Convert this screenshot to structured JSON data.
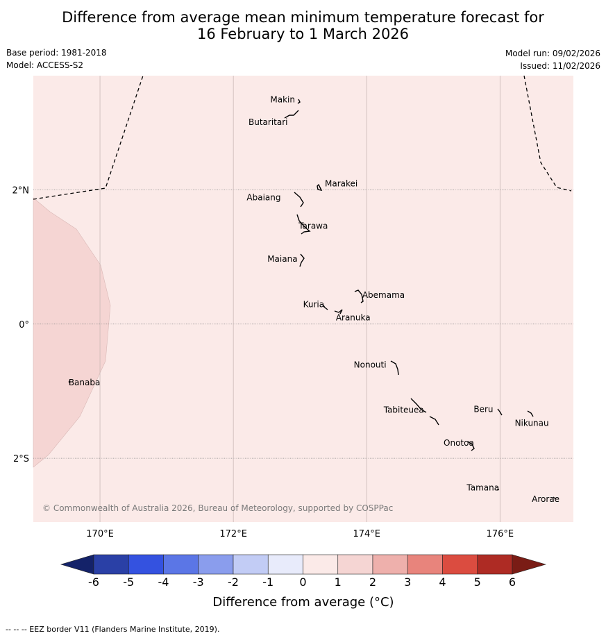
{
  "title": {
    "line1": "Difference from average mean minimum temperature forecast for",
    "line2": "16 February to 1 March 2026"
  },
  "meta": {
    "base_period": "Base period: 1981-2018",
    "model": "Model: ACCESS-S2",
    "model_run": "Model run: 09/02/2026",
    "issued": "Issued: 11/02/2026"
  },
  "map": {
    "lon_range": [
      169,
      177.1
    ],
    "lat_range": [
      -2.95,
      3.7
    ],
    "background_category": "0 to 1",
    "background_color": "#fbeae8",
    "warm_patch_category": "1 to 2",
    "warm_patch_color": "#f5d5d3",
    "lon_ticks": [
      {
        "value": 170,
        "label": "170°E"
      },
      {
        "value": 172,
        "label": "172°E"
      },
      {
        "value": 174,
        "label": "174°E"
      },
      {
        "value": 176,
        "label": "176°E"
      }
    ],
    "lat_ticks": [
      {
        "value": 2,
        "label": "2°N"
      },
      {
        "value": 0,
        "label": "0°"
      },
      {
        "value": -2,
        "label": "2°S"
      }
    ],
    "copyright": "© Commonwealth of Australia 2026, Bureau of Meteorology, supported by COSPPac",
    "islands": [
      {
        "name": "Makin",
        "lon": 172.95,
        "lat": 3.3
      },
      {
        "name": "Butaritari",
        "lon": 172.8,
        "lat": 3.07
      },
      {
        "name": "Marakei",
        "lon": 173.3,
        "lat": 2.0
      },
      {
        "name": "Abaiang",
        "lon": 172.95,
        "lat": 1.8
      },
      {
        "name": "Tarawa",
        "lon": 173.0,
        "lat": 1.42
      },
      {
        "name": "Maiana",
        "lon": 173.0,
        "lat": 0.92
      },
      {
        "name": "Abemama",
        "lon": 173.85,
        "lat": 0.38
      },
      {
        "name": "Kuria",
        "lon": 173.4,
        "lat": 0.22
      },
      {
        "name": "Aranuka",
        "lon": 173.6,
        "lat": 0.17
      },
      {
        "name": "Nonouti",
        "lon": 174.4,
        "lat": -0.67
      },
      {
        "name": "Banaba",
        "lon": 169.55,
        "lat": -0.87
      },
      {
        "name": "Tabiteuea",
        "lon": 174.9,
        "lat": -1.35
      },
      {
        "name": "Beru",
        "lon": 176.0,
        "lat": -1.33
      },
      {
        "name": "Nikunau",
        "lon": 176.45,
        "lat": -1.35
      },
      {
        "name": "Onotoa",
        "lon": 175.57,
        "lat": -1.8
      },
      {
        "name": "Tamana",
        "lon": 175.98,
        "lat": -2.5
      },
      {
        "name": "Arorae",
        "lon": 176.8,
        "lat": -2.65
      }
    ]
  },
  "colorbar": {
    "label": "Difference from average (°C)",
    "ticks": [
      "-6",
      "-5",
      "-4",
      "-3",
      "-2",
      "-1",
      "0",
      "1",
      "2",
      "3",
      "4",
      "5",
      "6"
    ],
    "colors": [
      "#2a40a6",
      "#3452e0",
      "#5b76e6",
      "#8a9ded",
      "#c2ccf5",
      "#e8ebfb",
      "#fbeae8",
      "#f5d5d3",
      "#eeb0ac",
      "#e8847c",
      "#db4c40",
      "#ae2b24"
    ],
    "under_color": "#142269",
    "over_color": "#7a1c15"
  },
  "footer": "--  --  -- EEZ border V11 (Flanders Marine Institute, 2019)."
}
